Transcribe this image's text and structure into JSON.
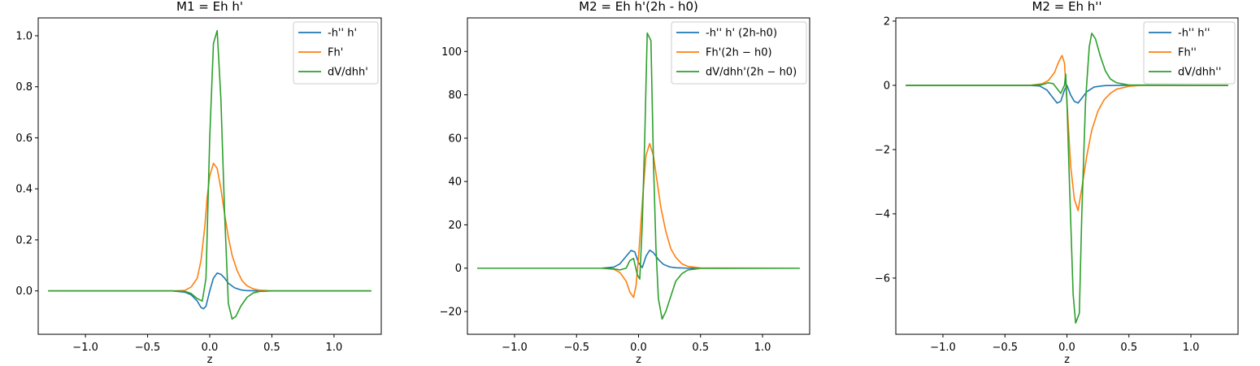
{
  "chart_data": [
    {
      "type": "line",
      "title": "M1 = Eh h'",
      "xlabel": "z",
      "ylabel": "",
      "xlim": [
        -1.38,
        1.38
      ],
      "ylim": [
        -0.17,
        1.07
      ],
      "xticks": [
        -1.0,
        -0.5,
        0.0,
        0.5,
        1.0
      ],
      "xtick_labels": [
        "−1.0",
        "−0.5",
        "0.0",
        "0.5",
        "1.0"
      ],
      "yticks": [
        0.0,
        0.2,
        0.4,
        0.6,
        0.8,
        1.0
      ],
      "ytick_labels": [
        "0.0",
        "0.2",
        "0.4",
        "0.6",
        "0.8",
        "1.0"
      ],
      "legend_position": "top-right",
      "grid": false,
      "series": [
        {
          "name": "-h'' h'",
          "color": "#1f77b4",
          "points": [
            [
              -1.3,
              0
            ],
            [
              -0.3,
              0
            ],
            [
              -0.2,
              -0.005
            ],
            [
              -0.15,
              -0.015
            ],
            [
              -0.1,
              -0.04
            ],
            [
              -0.07,
              -0.065
            ],
            [
              -0.05,
              -0.07
            ],
            [
              -0.03,
              -0.06
            ],
            [
              0.0,
              0.0
            ],
            [
              0.03,
              0.05
            ],
            [
              0.06,
              0.07
            ],
            [
              0.09,
              0.065
            ],
            [
              0.12,
              0.05
            ],
            [
              0.15,
              0.03
            ],
            [
              0.2,
              0.012
            ],
            [
              0.25,
              0.004
            ],
            [
              0.3,
              0.001
            ],
            [
              0.4,
              0
            ],
            [
              1.3,
              0
            ]
          ]
        },
        {
          "name": "Fh'",
          "color": "#ff7f0e",
          "points": [
            [
              -1.3,
              0
            ],
            [
              -0.3,
              0
            ],
            [
              -0.2,
              0.002
            ],
            [
              -0.15,
              0.015
            ],
            [
              -0.1,
              0.05
            ],
            [
              -0.07,
              0.12
            ],
            [
              -0.04,
              0.25
            ],
            [
              -0.02,
              0.37
            ],
            [
              0.0,
              0.45
            ],
            [
              0.03,
              0.5
            ],
            [
              0.06,
              0.48
            ],
            [
              0.09,
              0.4
            ],
            [
              0.12,
              0.3
            ],
            [
              0.15,
              0.21
            ],
            [
              0.18,
              0.14
            ],
            [
              0.22,
              0.08
            ],
            [
              0.26,
              0.04
            ],
            [
              0.3,
              0.02
            ],
            [
              0.35,
              0.008
            ],
            [
              0.4,
              0.003
            ],
            [
              0.5,
              0
            ],
            [
              1.3,
              0
            ]
          ]
        },
        {
          "name": "dV/dhh'",
          "color": "#2ca02c",
          "points": [
            [
              -1.3,
              0
            ],
            [
              -0.3,
              0
            ],
            [
              -0.2,
              -0.002
            ],
            [
              -0.15,
              -0.01
            ],
            [
              -0.1,
              -0.03
            ],
            [
              -0.06,
              -0.04
            ],
            [
              -0.03,
              0.05
            ],
            [
              0.0,
              0.6
            ],
            [
              0.03,
              0.97
            ],
            [
              0.06,
              1.02
            ],
            [
              0.09,
              0.75
            ],
            [
              0.12,
              0.3
            ],
            [
              0.15,
              -0.05
            ],
            [
              0.18,
              -0.11
            ],
            [
              0.21,
              -0.1
            ],
            [
              0.25,
              -0.06
            ],
            [
              0.3,
              -0.025
            ],
            [
              0.35,
              -0.008
            ],
            [
              0.4,
              -0.002
            ],
            [
              0.5,
              0
            ],
            [
              1.3,
              0
            ]
          ]
        }
      ]
    },
    {
      "type": "line",
      "title": "M2 = Eh h'(2h - h0)",
      "xlabel": "z",
      "ylabel": "",
      "xlim": [
        -1.38,
        1.38
      ],
      "ylim": [
        -30.5,
        115.5
      ],
      "xticks": [
        -1.0,
        -0.5,
        0.0,
        0.5,
        1.0
      ],
      "xtick_labels": [
        "−1.0",
        "−0.5",
        "0.0",
        "0.5",
        "1.0"
      ],
      "yticks": [
        -20,
        0,
        20,
        40,
        60,
        80,
        100
      ],
      "ytick_labels": [
        "−20",
        "0",
        "20",
        "40",
        "60",
        "80",
        "100"
      ],
      "legend_position": "top-right",
      "grid": false,
      "series": [
        {
          "name": "-h'' h' (2h-h0)",
          "color": "#1f77b4",
          "points": [
            [
              -1.3,
              0
            ],
            [
              -0.3,
              0
            ],
            [
              -0.2,
              0.5
            ],
            [
              -0.15,
              2
            ],
            [
              -0.1,
              5.5
            ],
            [
              -0.06,
              8.2
            ],
            [
              -0.03,
              7.5
            ],
            [
              0.0,
              2.5
            ],
            [
              0.03,
              0.3
            ],
            [
              0.06,
              5.5
            ],
            [
              0.09,
              8.3
            ],
            [
              0.12,
              7.2
            ],
            [
              0.16,
              4
            ],
            [
              0.2,
              1.8
            ],
            [
              0.25,
              0.6
            ],
            [
              0.3,
              0.2
            ],
            [
              0.4,
              0
            ],
            [
              1.3,
              0
            ]
          ]
        },
        {
          "name": "Fh'(2h − h0)",
          "color": "#ff7f0e",
          "points": [
            [
              -1.3,
              0
            ],
            [
              -0.3,
              0
            ],
            [
              -0.2,
              -0.5
            ],
            [
              -0.15,
              -2
            ],
            [
              -0.1,
              -6
            ],
            [
              -0.07,
              -11
            ],
            [
              -0.04,
              -13.5
            ],
            [
              -0.02,
              -8
            ],
            [
              0.0,
              5
            ],
            [
              0.03,
              30
            ],
            [
              0.06,
              52
            ],
            [
              0.09,
              57.5
            ],
            [
              0.12,
              52
            ],
            [
              0.15,
              40
            ],
            [
              0.18,
              28
            ],
            [
              0.22,
              17
            ],
            [
              0.26,
              9
            ],
            [
              0.3,
              5
            ],
            [
              0.35,
              2
            ],
            [
              0.4,
              0.8
            ],
            [
              0.5,
              0.1
            ],
            [
              1.3,
              0
            ]
          ]
        },
        {
          "name": "dV/dhh'(2h − h0)",
          "color": "#2ca02c",
          "points": [
            [
              -1.3,
              0
            ],
            [
              -0.3,
              0
            ],
            [
              -0.2,
              -0.3
            ],
            [
              -0.15,
              -0.8
            ],
            [
              -0.1,
              0
            ],
            [
              -0.07,
              3.5
            ],
            [
              -0.04,
              4.5
            ],
            [
              -0.01,
              -3
            ],
            [
              0.01,
              -5
            ],
            [
              0.03,
              20
            ],
            [
              0.05,
              60
            ],
            [
              0.07,
              108.5
            ],
            [
              0.1,
              105
            ],
            [
              0.12,
              50
            ],
            [
              0.14,
              10
            ],
            [
              0.16,
              -14
            ],
            [
              0.19,
              -23.5
            ],
            [
              0.22,
              -20
            ],
            [
              0.26,
              -13
            ],
            [
              0.3,
              -6
            ],
            [
              0.35,
              -2.5
            ],
            [
              0.4,
              -0.8
            ],
            [
              0.5,
              -0.1
            ],
            [
              1.3,
              0
            ]
          ]
        }
      ]
    },
    {
      "type": "line",
      "title": "M2 = Eh h''",
      "xlabel": "z",
      "ylabel": "",
      "xlim": [
        -1.38,
        1.38
      ],
      "ylim": [
        -7.75,
        2.1
      ],
      "xticks": [
        -1.0,
        -0.5,
        0.0,
        0.5,
        1.0
      ],
      "xtick_labels": [
        "−1.0",
        "−0.5",
        "0.0",
        "0.5",
        "1.0"
      ],
      "yticks": [
        -6,
        -4,
        -2,
        0,
        2
      ],
      "ytick_labels": [
        "−6",
        "−4",
        "−2",
        "0",
        "2"
      ],
      "legend_position": "top-right",
      "grid": false,
      "series": [
        {
          "name": "-h'' h''",
          "color": "#1f77b4",
          "points": [
            [
              -1.3,
              0
            ],
            [
              -0.3,
              0
            ],
            [
              -0.22,
              -0.02
            ],
            [
              -0.16,
              -0.15
            ],
            [
              -0.12,
              -0.35
            ],
            [
              -0.08,
              -0.55
            ],
            [
              -0.05,
              -0.5
            ],
            [
              -0.02,
              -0.15
            ],
            [
              0.0,
              0.0
            ],
            [
              0.03,
              -0.3
            ],
            [
              0.06,
              -0.5
            ],
            [
              0.09,
              -0.55
            ],
            [
              0.12,
              -0.4
            ],
            [
              0.16,
              -0.2
            ],
            [
              0.22,
              -0.05
            ],
            [
              0.3,
              -0.01
            ],
            [
              0.4,
              0
            ],
            [
              1.3,
              0
            ]
          ]
        },
        {
          "name": "Fh''",
          "color": "#ff7f0e",
          "points": [
            [
              -1.3,
              0
            ],
            [
              -0.3,
              0
            ],
            [
              -0.2,
              0.05
            ],
            [
              -0.15,
              0.15
            ],
            [
              -0.1,
              0.4
            ],
            [
              -0.07,
              0.7
            ],
            [
              -0.04,
              0.93
            ],
            [
              -0.02,
              0.7
            ],
            [
              0.0,
              -0.5
            ],
            [
              0.03,
              -2.5
            ],
            [
              0.06,
              -3.55
            ],
            [
              0.09,
              -3.9
            ],
            [
              0.12,
              -3.2
            ],
            [
              0.16,
              -2.2
            ],
            [
              0.2,
              -1.4
            ],
            [
              0.25,
              -0.8
            ],
            [
              0.3,
              -0.45
            ],
            [
              0.35,
              -0.25
            ],
            [
              0.4,
              -0.12
            ],
            [
              0.5,
              -0.03
            ],
            [
              0.6,
              0
            ],
            [
              1.3,
              0
            ]
          ]
        },
        {
          "name": "dV/dhh''",
          "color": "#2ca02c",
          "points": [
            [
              -1.3,
              0
            ],
            [
              -0.3,
              0
            ],
            [
              -0.2,
              0.02
            ],
            [
              -0.15,
              0.08
            ],
            [
              -0.11,
              0.05
            ],
            [
              -0.08,
              -0.1
            ],
            [
              -0.05,
              -0.25
            ],
            [
              -0.02,
              0.0
            ],
            [
              -0.01,
              0.35
            ],
            [
              0.0,
              -0.5
            ],
            [
              0.02,
              -3
            ],
            [
              0.05,
              -6.5
            ],
            [
              0.07,
              -7.4
            ],
            [
              0.1,
              -7.1
            ],
            [
              0.12,
              -4
            ],
            [
              0.15,
              -0.5
            ],
            [
              0.18,
              1.2
            ],
            [
              0.2,
              1.62
            ],
            [
              0.23,
              1.45
            ],
            [
              0.27,
              0.9
            ],
            [
              0.31,
              0.45
            ],
            [
              0.35,
              0.2
            ],
            [
              0.4,
              0.08
            ],
            [
              0.5,
              0.01
            ],
            [
              1.3,
              0
            ]
          ]
        }
      ]
    }
  ]
}
